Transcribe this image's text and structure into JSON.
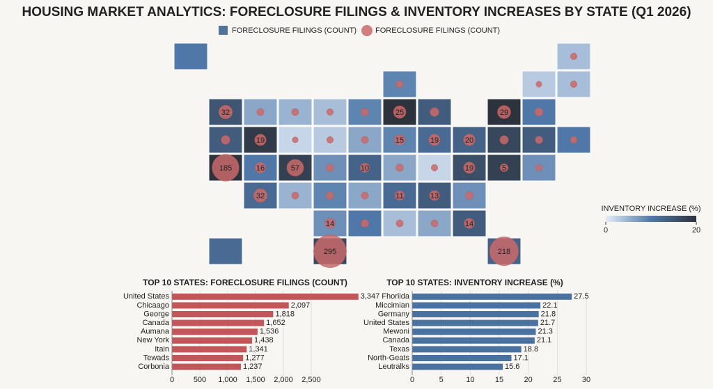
{
  "title": "HOUSING MARKET ANALYTICS: FORECLOSURE FILINGS & INVENTORY INCREASES BY STATE (Q1 2026)",
  "chart_data": [
    {
      "type": "choropleth",
      "legend": [
        {
          "label": "FORECLOSURE FILINGS (COUNT)",
          "color": "#52739a"
        },
        {
          "label": "FORECLOSURE FILINGS (COUNT)",
          "color": "#c96a6a"
        }
      ],
      "color_label": "INVENTORY INCREASE (%)",
      "clim": [
        0,
        20
      ],
      "cticks": [
        0,
        20
      ],
      "colors": [
        "#e4edf8",
        "#4f78a8",
        "#2d333d"
      ],
      "values": [
        10,
        4,
        9,
        3,
        4,
        15,
        6,
        5,
        4,
        9,
        20,
        14,
        20,
        10,
        14,
        19,
        2,
        3,
        6,
        9,
        12,
        13,
        17,
        14,
        10,
        20,
        10,
        18,
        8,
        13,
        6,
        2,
        16,
        18,
        8,
        12,
        5,
        9,
        6,
        12,
        14,
        8,
        8,
        10,
        4,
        6,
        14,
        12,
        17,
        13
      ],
      "sizes": [
        null,
        2,
        3,
        1,
        2,
        32,
        3,
        3,
        2,
        4,
        25,
        8,
        29,
        6,
        8,
        19,
        1,
        2,
        3,
        15,
        19,
        20,
        7,
        4,
        3,
        185,
        16,
        57,
        4,
        10,
        4,
        2,
        19,
        5,
        2,
        32,
        3,
        5,
        3,
        11,
        13,
        5,
        14,
        5,
        3,
        3,
        14,
        null,
        295,
        218
      ],
      "value_labels": [
        null,
        null,
        null,
        null,
        null,
        "32",
        null,
        null,
        null,
        null,
        "25",
        null,
        "29",
        null,
        null,
        "19",
        null,
        null,
        null,
        "15",
        "19",
        "20",
        null,
        null,
        null,
        "185",
        "16",
        "57",
        null,
        "10",
        null,
        null,
        "19",
        "5",
        null,
        "32",
        null,
        null,
        null,
        "11",
        "13",
        null,
        "14",
        null,
        null,
        null,
        "14",
        null,
        "295",
        "218"
      ]
    },
    {
      "type": "hbar",
      "title": "TOP 10 STATES: FORECLOSURE FILINGS (COUNT)",
      "color": "#c2575b",
      "categories": [
        "United States",
        "Chicaago",
        "George",
        "Canada",
        "Aumana",
        "New York",
        "Itain",
        "Tewads",
        "Corbonia"
      ],
      "values": [
        3347,
        2097,
        1818,
        1652,
        1536,
        1438,
        1341,
        1277,
        1237
      ],
      "value_labels": [
        "3,347",
        "2,097",
        "1,818",
        "1,652",
        "1,536",
        "1,438",
        "1,341",
        "1,277",
        "1,237"
      ],
      "xlim": [
        0,
        2500
      ],
      "xticks": [
        0,
        500,
        {
          "value": 1000,
          "label": "1,000"
        },
        {
          "value": 1500,
          "label": "1,500"
        },
        {
          "value": 2000,
          "label": "2,000"
        },
        {
          "value": 2500,
          "label": "2,500"
        }
      ]
    },
    {
      "type": "hbar",
      "title": "TOP 10 STATES: INVENTORY INCREASE (%)",
      "color": "#4a72a0",
      "categories": [
        "Fhoriida",
        "Miccimian",
        "Germany",
        "United States",
        "Mewoni",
        "Canada",
        "Texas",
        "North-Geats",
        "Leutralks"
      ],
      "values": [
        27.5,
        22.1,
        21.8,
        21.7,
        21.3,
        21.1,
        18.8,
        17.1,
        15.6
      ],
      "xlim": [
        0,
        30
      ],
      "xticks": [
        0,
        5,
        10,
        15,
        20,
        25,
        30
      ]
    }
  ]
}
